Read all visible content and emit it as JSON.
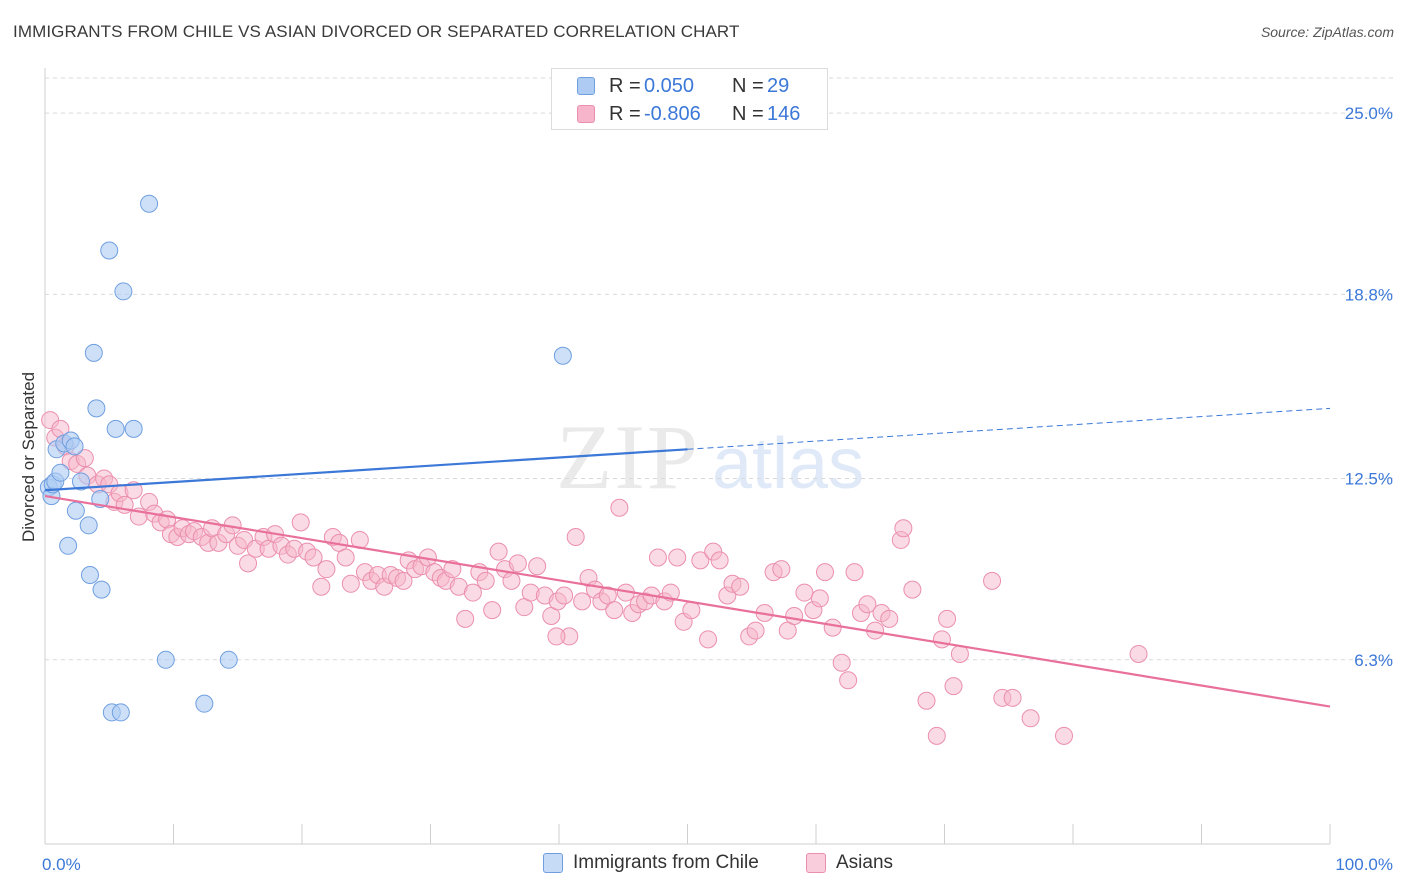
{
  "header": {
    "title": "IMMIGRANTS FROM CHILE VS ASIAN DIVORCED OR SEPARATED CORRELATION CHART",
    "source": "Source: ZipAtlas.com"
  },
  "watermark": {
    "zip": "ZIP",
    "atlas": "atlas"
  },
  "legend": {
    "rows": [
      {
        "r_label": "R =",
        "r_value": "0.050",
        "n_label": "N =",
        "n_value": "29"
      },
      {
        "r_label": "R =",
        "r_value": "-0.806",
        "n_label": "N =",
        "n_value": "146"
      }
    ]
  },
  "bottom_legend": {
    "items": [
      {
        "label": "Immigrants from Chile"
      },
      {
        "label": "Asians"
      }
    ]
  },
  "chart_data": {
    "type": "scatter",
    "title": "IMMIGRANTS FROM CHILE VS ASIAN DIVORCED OR SEPARATED CORRELATION CHART",
    "xlabel": "",
    "ylabel": "Divorced or Separated",
    "xlim": [
      0,
      100
    ],
    "ylim": [
      0,
      26.2
    ],
    "x_tick_labels": [
      "0.0%",
      "100.0%"
    ],
    "y_ticks": [
      6.3,
      12.5,
      18.8,
      25.0
    ],
    "y_tick_labels": [
      "6.3%",
      "12.5%",
      "18.8%",
      "25.0%"
    ],
    "grid": true,
    "legend_position": "top-center",
    "colors": {
      "chile_fill": "#aecbf3",
      "chile_stroke": "#6f9fe0",
      "chile_line": "#3b78d8",
      "asian_fill": "#f6b5ca",
      "asian_stroke": "#eb8fae",
      "asian_line": "#e8709b",
      "tick_label": "#3b78d8",
      "grid": "#d9d9d9"
    },
    "series": [
      {
        "name": "Immigrants from Chile",
        "r": 0.05,
        "n": 29,
        "trend": {
          "x0": 0,
          "y0": 12.1,
          "x1": 50,
          "y1": 13.5,
          "dashed_to_x": 100,
          "dashed_to_y": 14.9
        },
        "points": [
          [
            0.3,
            12.2
          ],
          [
            0.5,
            11.9
          ],
          [
            0.6,
            12.3
          ],
          [
            0.8,
            12.4
          ],
          [
            0.9,
            13.5
          ],
          [
            1.5,
            13.7
          ],
          [
            1.2,
            12.7
          ],
          [
            2.0,
            13.8
          ],
          [
            2.3,
            13.6
          ],
          [
            2.4,
            11.4
          ],
          [
            2.8,
            12.4
          ],
          [
            1.8,
            10.2
          ],
          [
            3.4,
            10.9
          ],
          [
            3.5,
            9.2
          ],
          [
            3.8,
            16.8
          ],
          [
            4.0,
            14.9
          ],
          [
            4.4,
            8.7
          ],
          [
            4.3,
            11.8
          ],
          [
            5.0,
            20.3
          ],
          [
            5.2,
            4.5
          ],
          [
            5.5,
            14.2
          ],
          [
            6.1,
            18.9
          ],
          [
            5.9,
            4.5
          ],
          [
            6.9,
            14.2
          ],
          [
            8.1,
            21.9
          ],
          [
            9.4,
            6.3
          ],
          [
            12.4,
            4.8
          ],
          [
            14.3,
            6.3
          ],
          [
            40.3,
            16.7
          ]
        ]
      },
      {
        "name": "Asians",
        "r": -0.806,
        "n": 146,
        "trend": {
          "x0": 0,
          "y0": 11.9,
          "x1": 100,
          "y1": 4.7
        },
        "points": [
          [
            0.4,
            14.5
          ],
          [
            0.8,
            13.9
          ],
          [
            1.2,
            14.2
          ],
          [
            1.6,
            13.6
          ],
          [
            2.0,
            13.1
          ],
          [
            2.5,
            13.0
          ],
          [
            3.1,
            13.2
          ],
          [
            3.3,
            12.6
          ],
          [
            4.1,
            12.3
          ],
          [
            4.6,
            12.5
          ],
          [
            5.0,
            12.3
          ],
          [
            5.4,
            11.7
          ],
          [
            5.8,
            12.0
          ],
          [
            6.2,
            11.6
          ],
          [
            6.9,
            12.1
          ],
          [
            7.3,
            11.2
          ],
          [
            8.1,
            11.7
          ],
          [
            8.5,
            11.3
          ],
          [
            9.0,
            11.0
          ],
          [
            9.5,
            11.1
          ],
          [
            9.8,
            10.6
          ],
          [
            10.3,
            10.5
          ],
          [
            10.7,
            10.8
          ],
          [
            11.2,
            10.6
          ],
          [
            11.6,
            10.7
          ],
          [
            12.2,
            10.5
          ],
          [
            12.7,
            10.3
          ],
          [
            13.0,
            10.8
          ],
          [
            13.5,
            10.3
          ],
          [
            14.1,
            10.6
          ],
          [
            14.6,
            10.9
          ],
          [
            15.0,
            10.2
          ],
          [
            15.5,
            10.4
          ],
          [
            15.8,
            9.6
          ],
          [
            16.4,
            10.1
          ],
          [
            17.0,
            10.5
          ],
          [
            17.4,
            10.1
          ],
          [
            17.9,
            10.6
          ],
          [
            18.4,
            10.2
          ],
          [
            18.9,
            9.9
          ],
          [
            19.4,
            10.1
          ],
          [
            19.9,
            11.0
          ],
          [
            20.4,
            10.0
          ],
          [
            20.9,
            9.8
          ],
          [
            21.5,
            8.8
          ],
          [
            21.9,
            9.4
          ],
          [
            22.4,
            10.5
          ],
          [
            22.9,
            10.3
          ],
          [
            23.4,
            9.8
          ],
          [
            23.8,
            8.9
          ],
          [
            24.5,
            10.4
          ],
          [
            24.9,
            9.3
          ],
          [
            25.4,
            9.0
          ],
          [
            25.9,
            9.2
          ],
          [
            26.4,
            8.8
          ],
          [
            26.9,
            9.2
          ],
          [
            27.4,
            9.1
          ],
          [
            27.9,
            9.0
          ],
          [
            28.3,
            9.7
          ],
          [
            28.8,
            9.4
          ],
          [
            29.3,
            9.5
          ],
          [
            29.8,
            9.8
          ],
          [
            30.3,
            9.3
          ],
          [
            30.8,
            9.1
          ],
          [
            31.2,
            9.0
          ],
          [
            31.7,
            9.4
          ],
          [
            32.2,
            8.8
          ],
          [
            32.7,
            7.7
          ],
          [
            33.3,
            8.6
          ],
          [
            33.8,
            9.3
          ],
          [
            34.3,
            9.0
          ],
          [
            34.8,
            8.0
          ],
          [
            35.3,
            10.0
          ],
          [
            35.8,
            9.4
          ],
          [
            36.3,
            9.0
          ],
          [
            36.8,
            9.6
          ],
          [
            37.3,
            8.1
          ],
          [
            37.8,
            8.6
          ],
          [
            38.3,
            9.5
          ],
          [
            38.9,
            8.5
          ],
          [
            39.4,
            7.8
          ],
          [
            39.9,
            8.3
          ],
          [
            40.4,
            8.5
          ],
          [
            40.8,
            7.1
          ],
          [
            41.3,
            10.5
          ],
          [
            41.8,
            8.3
          ],
          [
            42.3,
            9.1
          ],
          [
            42.8,
            8.7
          ],
          [
            43.3,
            8.3
          ],
          [
            43.8,
            8.5
          ],
          [
            44.3,
            8.0
          ],
          [
            44.7,
            11.5
          ],
          [
            45.2,
            8.6
          ],
          [
            45.7,
            7.9
          ],
          [
            46.2,
            8.2
          ],
          [
            46.7,
            8.3
          ],
          [
            47.2,
            8.5
          ],
          [
            47.7,
            9.8
          ],
          [
            48.2,
            8.3
          ],
          [
            48.7,
            8.6
          ],
          [
            49.2,
            9.8
          ],
          [
            49.7,
            7.6
          ],
          [
            50.3,
            8.0
          ],
          [
            51.0,
            9.7
          ],
          [
            51.6,
            7.0
          ],
          [
            52.0,
            10.0
          ],
          [
            52.5,
            9.7
          ],
          [
            53.1,
            8.5
          ],
          [
            53.5,
            8.9
          ],
          [
            54.1,
            8.8
          ],
          [
            54.8,
            7.1
          ],
          [
            55.3,
            7.3
          ],
          [
            56.0,
            7.9
          ],
          [
            56.7,
            9.3
          ],
          [
            57.3,
            9.4
          ],
          [
            57.8,
            7.3
          ],
          [
            58.3,
            7.8
          ],
          [
            59.1,
            8.6
          ],
          [
            59.8,
            8.0
          ],
          [
            60.3,
            8.4
          ],
          [
            60.7,
            9.3
          ],
          [
            61.3,
            7.4
          ],
          [
            62.0,
            6.2
          ],
          [
            62.5,
            5.6
          ],
          [
            63.0,
            9.3
          ],
          [
            63.5,
            7.9
          ],
          [
            64.0,
            8.2
          ],
          [
            64.6,
            7.3
          ],
          [
            65.1,
            7.9
          ],
          [
            65.7,
            7.7
          ],
          [
            66.6,
            10.4
          ],
          [
            66.8,
            10.8
          ],
          [
            67.5,
            8.7
          ],
          [
            68.6,
            4.9
          ],
          [
            69.4,
            3.7
          ],
          [
            69.8,
            7.0
          ],
          [
            70.2,
            7.7
          ],
          [
            70.7,
            5.4
          ],
          [
            71.2,
            6.5
          ],
          [
            73.7,
            9.0
          ],
          [
            74.5,
            5.0
          ],
          [
            75.3,
            5.0
          ],
          [
            76.7,
            4.3
          ],
          [
            79.3,
            3.7
          ],
          [
            85.1,
            6.5
          ],
          [
            39.8,
            7.1
          ]
        ]
      }
    ]
  }
}
